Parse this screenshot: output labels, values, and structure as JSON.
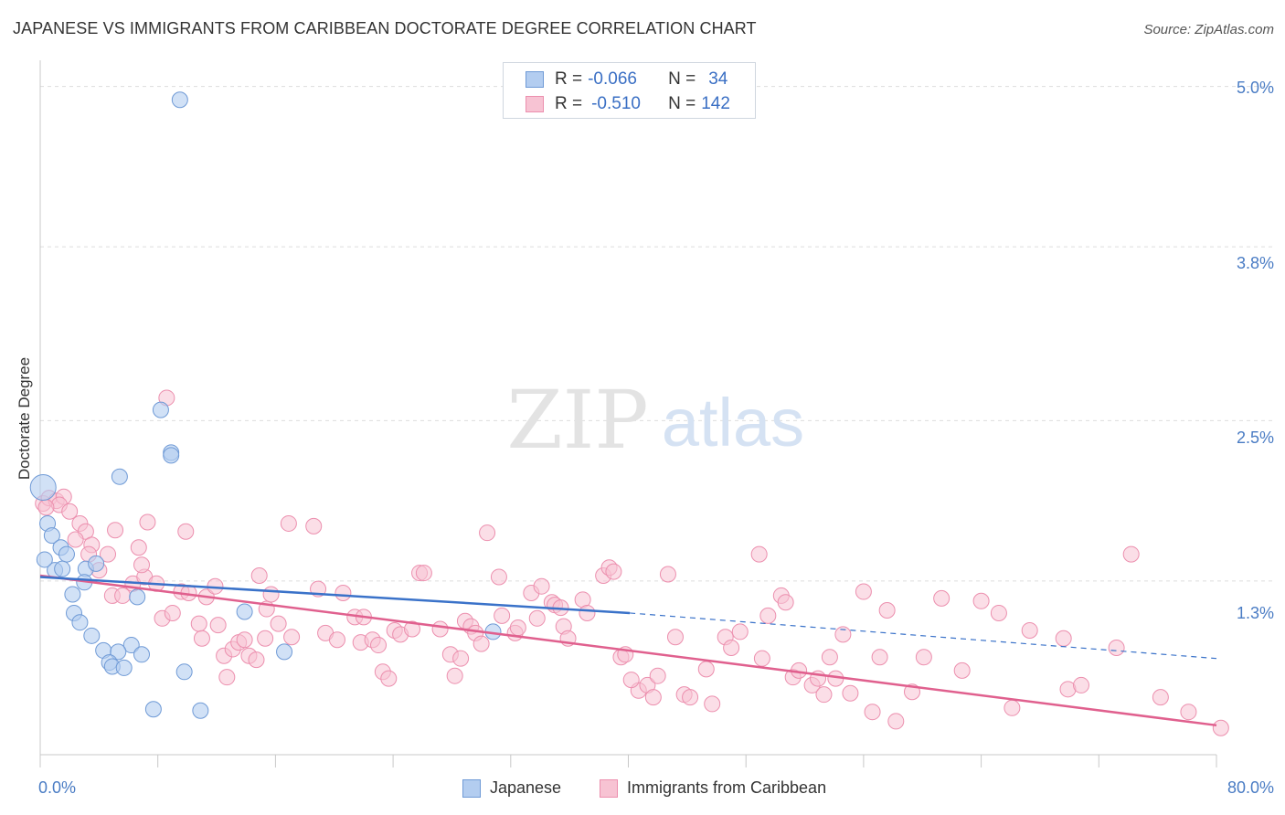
{
  "title": "JAPANESE VS IMMIGRANTS FROM CARIBBEAN DOCTORATE DEGREE CORRELATION CHART",
  "source": "Source: ZipAtlas.com",
  "watermark": {
    "zip": "ZIP",
    "atlas": "atlas"
  },
  "legend_top": {
    "japanese": {
      "r_label": "R =",
      "r_value": "-0.066",
      "n_label": "N =",
      "n_value": "34"
    },
    "caribbean": {
      "r_label": "R =",
      "r_value": "-0.510",
      "n_label": "N =",
      "n_value": "142"
    }
  },
  "colors": {
    "japanese_fill": "#b3cdf0",
    "japanese_stroke": "#6f9ad6",
    "japanese_line": "#3a72c9",
    "caribbean_fill": "#f7c3d3",
    "caribbean_stroke": "#ec8fae",
    "caribbean_line": "#e0608e",
    "grid": "#dddddd",
    "axis_text": "#4a7cc4"
  },
  "chart_data": {
    "type": "scatter",
    "title": "JAPANESE VS IMMIGRANTS FROM CARIBBEAN DOCTORATE DEGREE CORRELATION CHART",
    "xlabel": "",
    "ylabel": "Doctorate Degree",
    "xlim": [
      0,
      80
    ],
    "ylim": [
      0,
      5.1
    ],
    "x_tick_labels": [
      "0.0%",
      "80.0%"
    ],
    "y_ticks": [
      1.3,
      2.5,
      3.8,
      5.0
    ],
    "y_tick_labels": [
      "1.3%",
      "2.5%",
      "3.8%",
      "5.0%"
    ],
    "grid": true,
    "legend_position": "top-center",
    "series": [
      {
        "name": "Japanese",
        "r": -0.066,
        "n": 34,
        "trend": {
          "x": [
            0,
            40.1
          ],
          "y": [
            1.33,
            1.06
          ],
          "dashed_to": [
            80,
            0.72
          ]
        },
        "points": [
          [
            9.5,
            4.9
          ],
          [
            0.2,
            2.0
          ],
          [
            8.2,
            2.58
          ],
          [
            8.9,
            2.26
          ],
          [
            8.9,
            2.24
          ],
          [
            5.4,
            2.08
          ],
          [
            0.5,
            1.73
          ],
          [
            0.8,
            1.64
          ],
          [
            1.4,
            1.55
          ],
          [
            1.8,
            1.5
          ],
          [
            1.0,
            1.38
          ],
          [
            1.5,
            1.39
          ],
          [
            3.1,
            1.39
          ],
          [
            3.8,
            1.43
          ],
          [
            3.0,
            1.29
          ],
          [
            2.2,
            1.2
          ],
          [
            6.6,
            1.18
          ],
          [
            2.3,
            1.06
          ],
          [
            2.7,
            0.99
          ],
          [
            13.9,
            1.07
          ],
          [
            3.5,
            0.89
          ],
          [
            4.3,
            0.78
          ],
          [
            6.2,
            0.82
          ],
          [
            5.3,
            0.77
          ],
          [
            6.9,
            0.75
          ],
          [
            4.7,
            0.69
          ],
          [
            4.9,
            0.66
          ],
          [
            5.7,
            0.65
          ],
          [
            9.8,
            0.62
          ],
          [
            16.6,
            0.77
          ],
          [
            30.8,
            0.92
          ],
          [
            7.7,
            0.34
          ],
          [
            10.9,
            0.33
          ],
          [
            0.3,
            1.46
          ]
        ]
      },
      {
        "name": "Immigrants from Caribbean",
        "r": -0.51,
        "n": 142,
        "trend": {
          "x": [
            0,
            80
          ],
          "y": [
            1.34,
            0.22
          ]
        },
        "points": [
          [
            0.2,
            1.88
          ],
          [
            0.6,
            1.92
          ],
          [
            1.1,
            1.9
          ],
          [
            1.6,
            1.93
          ],
          [
            1.3,
            1.87
          ],
          [
            0.4,
            1.85
          ],
          [
            2.0,
            1.82
          ],
          [
            2.7,
            1.73
          ],
          [
            3.1,
            1.67
          ],
          [
            2.4,
            1.61
          ],
          [
            3.5,
            1.57
          ],
          [
            3.3,
            1.5
          ],
          [
            4.6,
            1.5
          ],
          [
            5.1,
            1.68
          ],
          [
            7.3,
            1.74
          ],
          [
            6.7,
            1.55
          ],
          [
            9.9,
            1.67
          ],
          [
            8.6,
            2.67
          ],
          [
            4.0,
            1.38
          ],
          [
            4.9,
            1.19
          ],
          [
            5.6,
            1.19
          ],
          [
            6.3,
            1.28
          ],
          [
            7.1,
            1.33
          ],
          [
            7.9,
            1.28
          ],
          [
            6.9,
            1.42
          ],
          [
            8.3,
            1.02
          ],
          [
            9.0,
            1.06
          ],
          [
            9.6,
            1.22
          ],
          [
            10.1,
            1.21
          ],
          [
            11.3,
            1.18
          ],
          [
            11.9,
            1.26
          ],
          [
            10.8,
            0.98
          ],
          [
            11.0,
            0.87
          ],
          [
            12.1,
            0.97
          ],
          [
            12.5,
            0.74
          ],
          [
            12.7,
            0.58
          ],
          [
            13.1,
            0.79
          ],
          [
            13.5,
            0.84
          ],
          [
            13.9,
            0.86
          ],
          [
            14.2,
            0.74
          ],
          [
            14.7,
            0.71
          ],
          [
            14.9,
            1.34
          ],
          [
            15.4,
            1.09
          ],
          [
            15.7,
            1.2
          ],
          [
            15.3,
            0.87
          ],
          [
            16.2,
            0.98
          ],
          [
            16.9,
            1.73
          ],
          [
            17.1,
            0.88
          ],
          [
            18.6,
            1.71
          ],
          [
            18.9,
            1.24
          ],
          [
            19.4,
            0.91
          ],
          [
            20.2,
            0.86
          ],
          [
            20.6,
            1.21
          ],
          [
            21.4,
            1.03
          ],
          [
            21.8,
            0.84
          ],
          [
            22.0,
            1.03
          ],
          [
            22.6,
            0.86
          ],
          [
            23.0,
            0.82
          ],
          [
            23.3,
            0.62
          ],
          [
            23.7,
            0.57
          ],
          [
            24.1,
            0.93
          ],
          [
            24.5,
            0.9
          ],
          [
            25.3,
            0.94
          ],
          [
            25.8,
            1.36
          ],
          [
            26.1,
            1.36
          ],
          [
            27.2,
            0.94
          ],
          [
            27.9,
            0.75
          ],
          [
            28.2,
            0.59
          ],
          [
            28.6,
            0.72
          ],
          [
            28.9,
            1.0
          ],
          [
            29.3,
            0.96
          ],
          [
            29.6,
            0.91
          ],
          [
            30.0,
            0.83
          ],
          [
            30.4,
            1.66
          ],
          [
            31.2,
            1.33
          ],
          [
            31.4,
            1.04
          ],
          [
            32.3,
            0.91
          ],
          [
            32.5,
            0.95
          ],
          [
            33.4,
            1.21
          ],
          [
            33.8,
            1.02
          ],
          [
            34.1,
            1.26
          ],
          [
            34.8,
            1.14
          ],
          [
            35.0,
            1.12
          ],
          [
            35.4,
            1.1
          ],
          [
            35.6,
            0.96
          ],
          [
            35.9,
            0.87
          ],
          [
            36.9,
            1.16
          ],
          [
            37.2,
            1.06
          ],
          [
            38.3,
            1.34
          ],
          [
            38.7,
            1.4
          ],
          [
            39.0,
            1.37
          ],
          [
            39.5,
            0.73
          ],
          [
            39.8,
            0.75
          ],
          [
            40.7,
            0.48
          ],
          [
            40.2,
            0.56
          ],
          [
            41.3,
            0.52
          ],
          [
            41.7,
            0.43
          ],
          [
            42.0,
            0.59
          ],
          [
            42.7,
            1.35
          ],
          [
            43.2,
            0.88
          ],
          [
            43.8,
            0.45
          ],
          [
            44.2,
            0.43
          ],
          [
            45.3,
            0.64
          ],
          [
            45.7,
            0.38
          ],
          [
            46.6,
            0.88
          ],
          [
            47.0,
            0.8
          ],
          [
            47.6,
            0.92
          ],
          [
            48.9,
            1.5
          ],
          [
            49.1,
            0.72
          ],
          [
            49.5,
            1.04
          ],
          [
            50.4,
            1.19
          ],
          [
            50.7,
            1.14
          ],
          [
            51.2,
            0.58
          ],
          [
            51.6,
            0.63
          ],
          [
            52.5,
            0.52
          ],
          [
            52.9,
            0.57
          ],
          [
            53.3,
            0.45
          ],
          [
            53.7,
            0.73
          ],
          [
            54.1,
            0.57
          ],
          [
            54.6,
            0.9
          ],
          [
            55.1,
            0.46
          ],
          [
            56.0,
            1.22
          ],
          [
            56.6,
            0.32
          ],
          [
            57.1,
            0.73
          ],
          [
            57.6,
            1.08
          ],
          [
            58.2,
            0.25
          ],
          [
            59.3,
            0.47
          ],
          [
            60.1,
            0.73
          ],
          [
            61.3,
            1.17
          ],
          [
            62.7,
            0.63
          ],
          [
            64.0,
            1.15
          ],
          [
            65.2,
            1.06
          ],
          [
            66.1,
            0.35
          ],
          [
            67.3,
            0.93
          ],
          [
            69.6,
            0.87
          ],
          [
            69.9,
            0.49
          ],
          [
            70.8,
            0.52
          ],
          [
            73.2,
            0.8
          ],
          [
            74.2,
            1.5
          ],
          [
            76.2,
            0.43
          ],
          [
            78.1,
            0.32
          ],
          [
            80.3,
            0.2
          ]
        ]
      }
    ]
  },
  "legend_bottom": {
    "japanese": "Japanese",
    "caribbean": "Immigrants from Caribbean"
  }
}
